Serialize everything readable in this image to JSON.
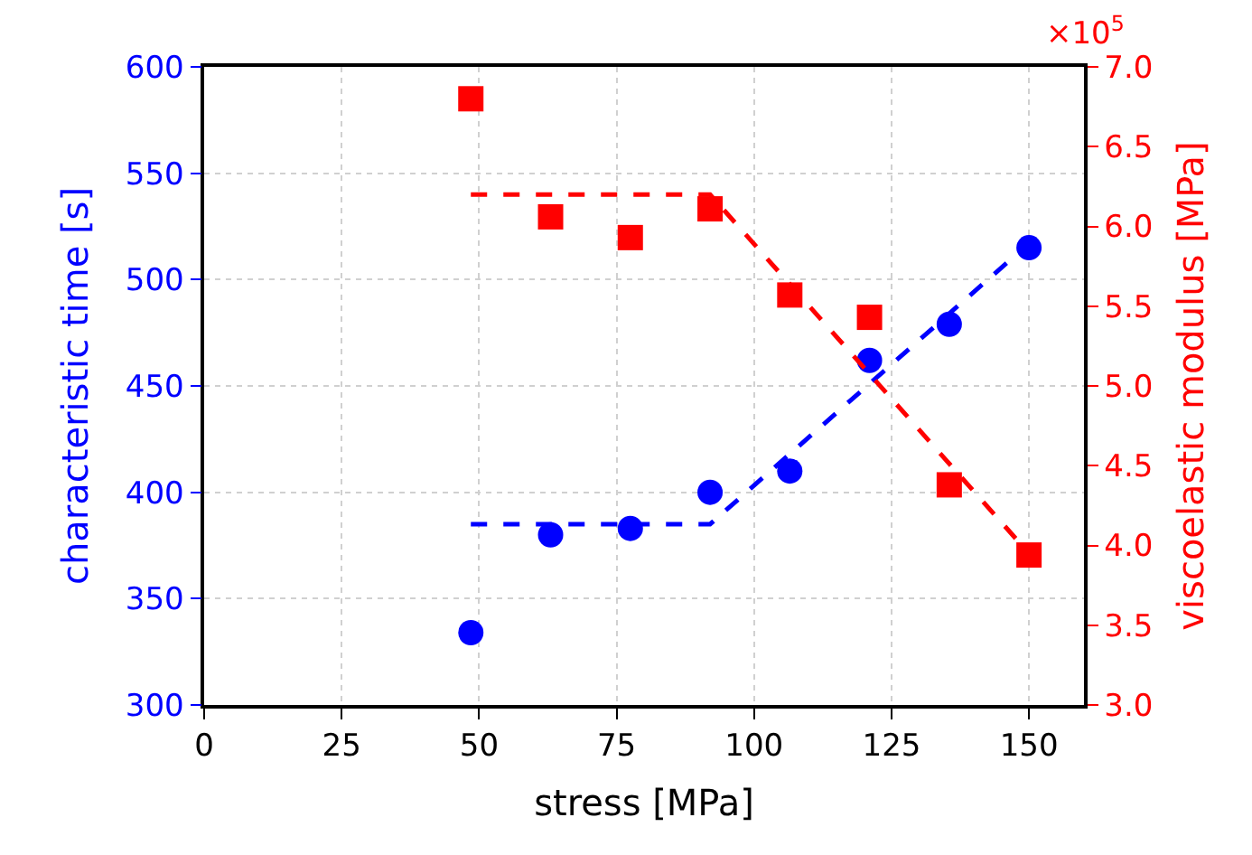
{
  "chart_data": {
    "type": "scatter",
    "xlabel": "stress [MPa]",
    "ylabel": "characteristic time [s]",
    "y2label": "viscoelastic modulus [MPa]",
    "x": [
      48.5,
      63,
      77.5,
      92,
      106.5,
      121,
      135.5,
      150
    ],
    "series": [
      {
        "color": "#0000ff",
        "marker": "circle",
        "values": [
          334,
          380,
          383,
          400,
          410,
          462,
          479,
          515
        ]
      },
      {
        "type": "line",
        "color": "#0000ff",
        "marker": "none",
        "line_style": "dashed",
        "x": [
          48.5,
          92,
          150
        ],
        "values": [
          385,
          385,
          517
        ]
      },
      {
        "color": "#ff0000",
        "marker": "square",
        "axis": "y2",
        "values": [
          6.8,
          6.06,
          5.93,
          6.11,
          5.57,
          5.43,
          4.38,
          3.94
        ]
      },
      {
        "type": "line",
        "color": "#ff0000",
        "marker": "none",
        "line_style": "dashed",
        "axis": "y2",
        "x": [
          48.5,
          92,
          150
        ],
        "values": [
          6.2,
          6.2,
          3.95
        ]
      }
    ],
    "xlim": [
      0,
      160
    ],
    "xticks": [
      0,
      25,
      50,
      75,
      100,
      125,
      150
    ],
    "ylim": [
      300,
      600
    ],
    "yticks": [
      300,
      350,
      400,
      450,
      500,
      550,
      600
    ],
    "y2lim": [
      3.0,
      7.0
    ],
    "y2ticks": [
      {
        "value": 3.0,
        "label": "3.0"
      },
      3.5,
      {
        "value": 4.0,
        "label": "4.0"
      },
      4.5,
      {
        "value": 5.0,
        "label": "5.0"
      },
      5.5,
      {
        "value": 6.0,
        "label": "6.0"
      },
      6.5,
      {
        "value": 7.0,
        "label": "7.0"
      }
    ],
    "annotations": [
      "×10$^{5}$"
    ],
    "grid": true
  }
}
